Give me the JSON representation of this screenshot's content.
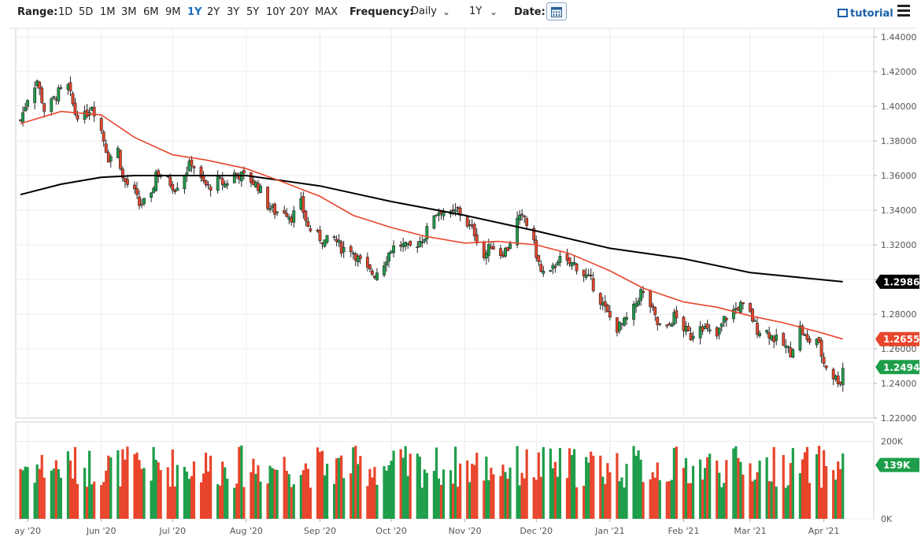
{
  "toolbar": {
    "range_label": "Range:",
    "ranges": [
      "1D",
      "5D",
      "1M",
      "3M",
      "6M",
      "9M",
      "1Y",
      "2Y",
      "3Y",
      "5Y",
      "10Y",
      "20Y",
      "MAX"
    ],
    "active_range": "1Y",
    "frequency_label": "Frequency:",
    "frequency_value": "Daily",
    "period_value": "1Y",
    "date_label": "Date:",
    "tutorial_label": "tutorial"
  },
  "icons": {
    "calendar": "calendar-icon",
    "tutorial": "film-icon",
    "menu": "hamburger-menu-icon",
    "dropdown": "chevron-down-icon"
  },
  "colors": {
    "up": "#1e9e4a",
    "down": "#e8452c",
    "ma50": "#e8452c",
    "ma200": "#000000",
    "price_tag": "#1e9e4a",
    "ma50_tag": "#e8452c",
    "ma200_tag": "#000000",
    "volume_highlight": "#5b3fd0"
  },
  "chart_data": {
    "type": "candlestick",
    "x_tick_labels": [
      "ay '20",
      "Jun '20",
      "Jul '20",
      "Aug '20",
      "Sep '20",
      "Oct '20",
      "Nov '20",
      "Dec '20",
      "Jan '21",
      "Feb '21",
      "Mar '21",
      "Apr '21"
    ],
    "x_tick_dates": [
      "2020-05-01",
      "2020-06-01",
      "2020-07-01",
      "2020-08-01",
      "2020-09-01",
      "2020-10-01",
      "2020-11-01",
      "2020-12-01",
      "2021-01-01",
      "2021-02-01",
      "2021-03-01",
      "2021-04-01"
    ],
    "x_range": [
      "2020-04-26",
      "2021-04-22"
    ],
    "price_ylim": [
      1.22,
      1.445
    ],
    "price_ticks": [
      "1.22000",
      "1.24000",
      "1.26000",
      "1.28000",
      "1.30000",
      "1.32000",
      "1.34000",
      "1.36000",
      "1.38000",
      "1.40000",
      "1.42000",
      "1.44000"
    ],
    "close_path": [
      [
        "2020-04-28",
        1.392
      ],
      [
        "2020-05-01",
        1.405
      ],
      [
        "2020-05-05",
        1.415
      ],
      [
        "2020-05-08",
        1.398
      ],
      [
        "2020-05-11",
        1.402
      ],
      [
        "2020-05-14",
        1.408
      ],
      [
        "2020-05-18",
        1.411
      ],
      [
        "2020-05-21",
        1.396
      ],
      [
        "2020-05-25",
        1.394
      ],
      [
        "2020-05-28",
        1.401
      ],
      [
        "2020-06-01",
        1.386
      ],
      [
        "2020-06-04",
        1.37
      ],
      [
        "2020-06-08",
        1.375
      ],
      [
        "2020-06-10",
        1.358
      ],
      [
        "2020-06-15",
        1.35
      ],
      [
        "2020-06-17",
        1.343
      ],
      [
        "2020-06-22",
        1.347
      ],
      [
        "2020-06-24",
        1.362
      ],
      [
        "2020-06-29",
        1.357
      ],
      [
        "2020-07-02",
        1.353
      ],
      [
        "2020-07-06",
        1.361
      ],
      [
        "2020-07-09",
        1.368
      ],
      [
        "2020-07-13",
        1.357
      ],
      [
        "2020-07-16",
        1.353
      ],
      [
        "2020-07-20",
        1.357
      ],
      [
        "2020-07-23",
        1.355
      ],
      [
        "2020-07-27",
        1.361
      ],
      [
        "2020-07-30",
        1.36
      ],
      [
        "2020-08-03",
        1.357
      ],
      [
        "2020-08-06",
        1.354
      ],
      [
        "2020-08-10",
        1.343
      ],
      [
        "2020-08-13",
        1.339
      ],
      [
        "2020-08-17",
        1.34
      ],
      [
        "2020-08-20",
        1.336
      ],
      [
        "2020-08-24",
        1.344
      ],
      [
        "2020-08-27",
        1.33
      ],
      [
        "2020-08-31",
        1.325
      ],
      [
        "2020-09-03",
        1.322
      ],
      [
        "2020-09-07",
        1.324
      ],
      [
        "2020-09-10",
        1.318
      ],
      [
        "2020-09-14",
        1.318
      ],
      [
        "2020-09-17",
        1.312
      ],
      [
        "2020-09-21",
        1.305
      ],
      [
        "2020-09-24",
        1.303
      ],
      [
        "2020-09-28",
        1.31
      ],
      [
        "2020-10-01",
        1.318
      ],
      [
        "2020-10-05",
        1.32
      ],
      [
        "2020-10-08",
        1.318
      ],
      [
        "2020-10-12",
        1.321
      ],
      [
        "2020-10-15",
        1.325
      ],
      [
        "2020-10-19",
        1.338
      ],
      [
        "2020-10-22",
        1.34
      ],
      [
        "2020-10-26",
        1.337
      ],
      [
        "2020-10-29",
        1.34
      ],
      [
        "2020-11-02",
        1.332
      ],
      [
        "2020-11-05",
        1.327
      ],
      [
        "2020-11-09",
        1.313
      ],
      [
        "2020-11-12",
        1.32
      ],
      [
        "2020-11-16",
        1.315
      ],
      [
        "2020-11-19",
        1.318
      ],
      [
        "2020-11-23",
        1.334
      ],
      [
        "2020-11-26",
        1.336
      ],
      [
        "2020-11-30",
        1.32
      ],
      [
        "2020-12-03",
        1.304
      ],
      [
        "2020-12-07",
        1.303
      ],
      [
        "2020-12-10",
        1.312
      ],
      [
        "2020-12-14",
        1.309
      ],
      [
        "2020-12-17",
        1.309
      ],
      [
        "2020-12-21",
        1.303
      ],
      [
        "2020-12-24",
        1.299
      ],
      [
        "2020-12-28",
        1.288
      ],
      [
        "2020-12-31",
        1.28
      ],
      [
        "2021-01-04",
        1.272
      ],
      [
        "2021-01-07",
        1.275
      ],
      [
        "2021-01-11",
        1.283
      ],
      [
        "2021-01-14",
        1.293
      ],
      [
        "2021-01-18",
        1.285
      ],
      [
        "2021-01-21",
        1.274
      ],
      [
        "2021-01-25",
        1.271
      ],
      [
        "2021-01-28",
        1.279
      ],
      [
        "2021-02-01",
        1.272
      ],
      [
        "2021-02-04",
        1.267
      ],
      [
        "2021-02-08",
        1.275
      ],
      [
        "2021-02-11",
        1.27
      ],
      [
        "2021-02-15",
        1.267
      ],
      [
        "2021-02-18",
        1.277
      ],
      [
        "2021-02-22",
        1.282
      ],
      [
        "2021-02-25",
        1.285
      ],
      [
        "2021-03-01",
        1.28
      ],
      [
        "2021-03-04",
        1.271
      ],
      [
        "2021-03-08",
        1.27
      ],
      [
        "2021-03-11",
        1.266
      ],
      [
        "2021-03-15",
        1.262
      ],
      [
        "2021-03-18",
        1.258
      ],
      [
        "2021-03-22",
        1.272
      ],
      [
        "2021-03-25",
        1.264
      ],
      [
        "2021-03-29",
        1.266
      ],
      [
        "2021-04-01",
        1.252
      ],
      [
        "2021-04-05",
        1.244
      ],
      [
        "2021-04-08",
        1.241
      ],
      [
        "2021-04-09",
        1.249
      ]
    ],
    "ma50_path": [
      [
        "2020-04-28",
        1.39
      ],
      [
        "2020-05-15",
        1.397
      ],
      [
        "2020-06-01",
        1.395
      ],
      [
        "2020-06-15",
        1.382
      ],
      [
        "2020-07-01",
        1.372
      ],
      [
        "2020-07-15",
        1.369
      ],
      [
        "2020-08-01",
        1.364
      ],
      [
        "2020-08-15",
        1.357
      ],
      [
        "2020-09-01",
        1.348
      ],
      [
        "2020-09-15",
        1.337
      ],
      [
        "2020-10-01",
        1.33
      ],
      [
        "2020-10-15",
        1.325
      ],
      [
        "2020-11-01",
        1.321
      ],
      [
        "2020-11-15",
        1.322
      ],
      [
        "2020-12-01",
        1.32
      ],
      [
        "2020-12-15",
        1.315
      ],
      [
        "2021-01-01",
        1.305
      ],
      [
        "2021-01-15",
        1.295
      ],
      [
        "2021-02-01",
        1.287
      ],
      [
        "2021-02-15",
        1.284
      ],
      [
        "2021-03-01",
        1.279
      ],
      [
        "2021-03-15",
        1.275
      ],
      [
        "2021-03-29",
        1.27
      ],
      [
        "2021-04-09",
        1.2656
      ]
    ],
    "ma200_path": [
      [
        "2020-04-28",
        1.349
      ],
      [
        "2020-05-15",
        1.355
      ],
      [
        "2020-06-01",
        1.359
      ],
      [
        "2020-06-15",
        1.36
      ],
      [
        "2020-07-01",
        1.36
      ],
      [
        "2020-08-01",
        1.36
      ],
      [
        "2020-09-01",
        1.354
      ],
      [
        "2020-10-01",
        1.345
      ],
      [
        "2020-11-01",
        1.337
      ],
      [
        "2020-12-01",
        1.328
      ],
      [
        "2021-01-01",
        1.318
      ],
      [
        "2021-02-01",
        1.312
      ],
      [
        "2021-03-01",
        1.304
      ],
      [
        "2021-04-09",
        1.2987
      ]
    ],
    "volume_ylim": [
      0,
      250000
    ],
    "volume_ticks": [
      "0K",
      "200K"
    ],
    "last_volume": "139K",
    "last_price": "1.24943",
    "ma50_last": "1.26558",
    "ma200_last": "1.29868",
    "grid": true
  }
}
